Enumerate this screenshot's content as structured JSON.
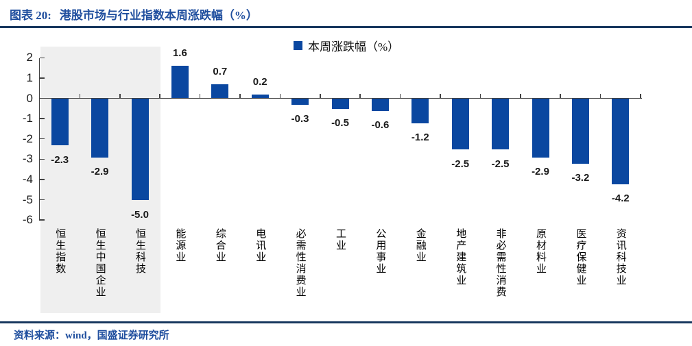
{
  "header": {
    "figure_label": "图表 20:",
    "title": "港股市场与行业指数本周涨跌幅（%）"
  },
  "chart_data": {
    "type": "bar",
    "title": "港股市场与行业指数本周涨跌幅（%）",
    "legend": "本周涨跌幅（%）",
    "categories": [
      "恒生指数",
      "恒生中国企业",
      "恒生科技",
      "能源业",
      "综合业",
      "电讯业",
      "必需性消费业",
      "工业",
      "公用事业",
      "金融业",
      "地产建筑业",
      "非必需性消费",
      "原材料业",
      "医疗保健业",
      "资讯科技业"
    ],
    "values": [
      -2.3,
      -2.9,
      -5.0,
      1.6,
      0.7,
      0.2,
      -0.3,
      -0.5,
      -0.6,
      -1.2,
      -2.5,
      -2.5,
      -2.9,
      -3.2,
      -4.2
    ],
    "value_labels": [
      "-2.3",
      "-2.9",
      "-5.0",
      "1.6",
      "0.7",
      "0.2",
      "-0.3",
      "-0.5",
      "-0.6",
      "-1.2",
      "-2.5",
      "-2.5",
      "-2.9",
      "-3.2",
      "-4.2"
    ],
    "xlabel": "",
    "ylabel": "",
    "y_ticks": [
      2,
      1,
      0,
      -1,
      -2,
      -3,
      -4,
      -5,
      -6
    ],
    "ylim": [
      -6,
      2
    ],
    "grid": "off",
    "legend_position": "top-center",
    "bar_color": "#0A47A0",
    "highlight": {
      "first_n_categories": 3,
      "color": "#EFEFEF"
    }
  },
  "footer": {
    "source": "资料来源：wind，国盛证券研究所"
  }
}
